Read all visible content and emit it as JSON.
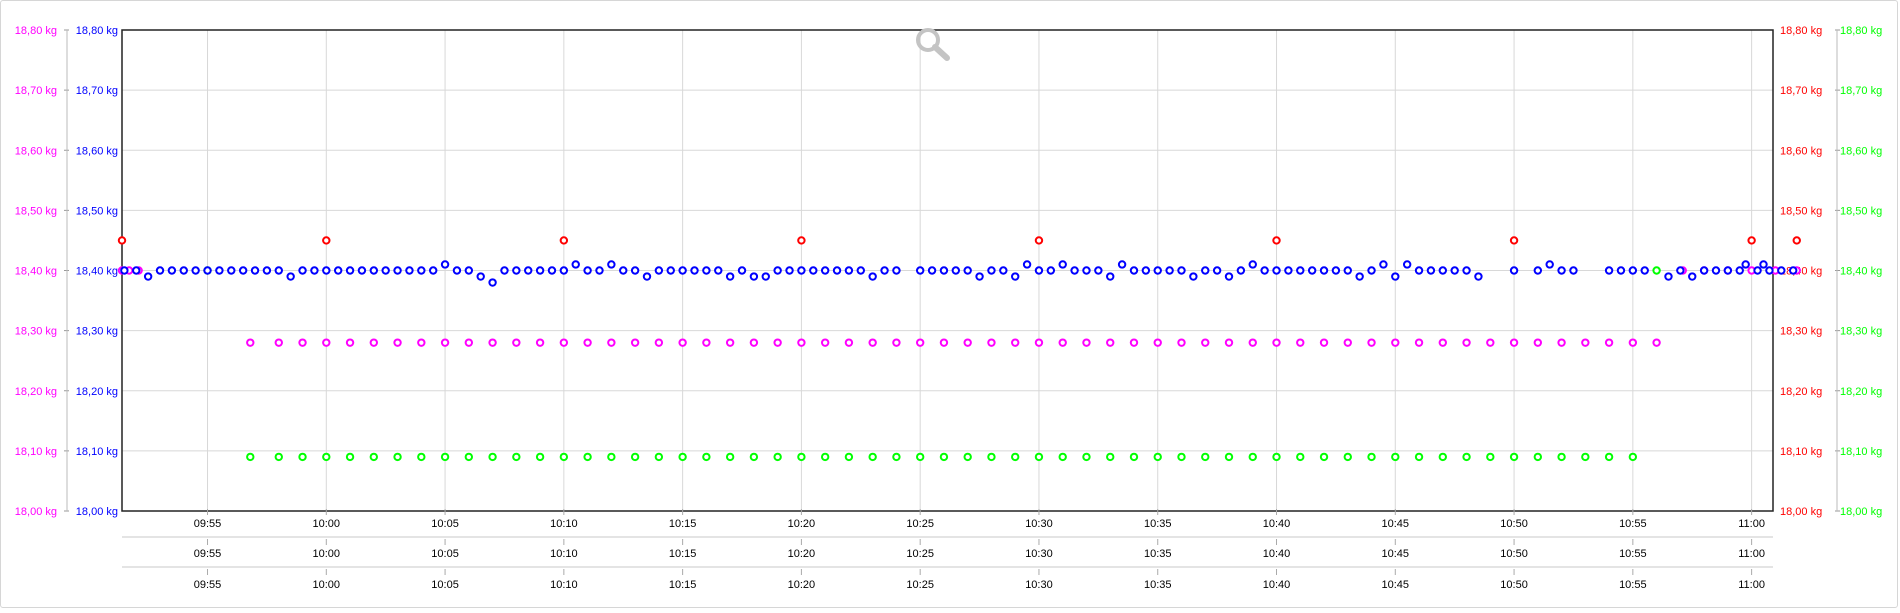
{
  "chart_data": {
    "type": "scatter",
    "y_unit": "kg",
    "ylim": [
      18.0,
      18.8
    ],
    "y_ticks": [
      "18,00 kg",
      "18,10 kg",
      "18,20 kg",
      "18,30 kg",
      "18,40 kg",
      "18,50 kg",
      "18,60 kg",
      "18,70 kg",
      "18,80 kg"
    ],
    "x_ticks": [
      "09:55",
      "10:00",
      "10:05",
      "10:10",
      "10:15",
      "10:20",
      "10:25",
      "10:30",
      "10:35",
      "10:40",
      "10:45",
      "10:50",
      "10:55",
      "11:00"
    ],
    "x_range": [
      "09:51:24",
      "11:00:54"
    ],
    "grid": true,
    "axes": [
      {
        "side": "left-outer",
        "color": "#ff00ff"
      },
      {
        "side": "left-inner",
        "color": "#0000ff"
      },
      {
        "side": "right-inner",
        "color": "#ff0000"
      },
      {
        "side": "right-outer",
        "color": "#00ff00"
      }
    ],
    "series": [
      {
        "color": "#ff0000",
        "points": [
          [
            "09:51:24",
            18.45
          ],
          [
            "10:00:00",
            18.45
          ],
          [
            "10:10:00",
            18.45
          ],
          [
            "10:20:00",
            18.45
          ],
          [
            "10:30:00",
            18.45
          ],
          [
            "10:40:00",
            18.45
          ],
          [
            "10:50:00",
            18.45
          ],
          [
            "11:00:00",
            18.45
          ],
          [
            "11:01:54",
            18.45
          ]
        ]
      },
      {
        "color": "#ff00ff",
        "points": [
          [
            "09:51:24",
            18.4
          ],
          [
            "09:51:42",
            18.4
          ],
          [
            "09:52:06",
            18.4
          ],
          [
            "09:56:48",
            18.28
          ],
          [
            "09:58:00",
            18.28
          ],
          [
            "09:59:00",
            18.28
          ],
          [
            "10:00:00",
            18.28
          ],
          [
            "10:01:00",
            18.28
          ],
          [
            "10:02:00",
            18.28
          ],
          [
            "10:03:00",
            18.28
          ],
          [
            "10:04:00",
            18.28
          ],
          [
            "10:05:00",
            18.28
          ],
          [
            "10:06:00",
            18.28
          ],
          [
            "10:07:00",
            18.28
          ],
          [
            "10:08:00",
            18.28
          ],
          [
            "10:09:00",
            18.28
          ],
          [
            "10:10:00",
            18.28
          ],
          [
            "10:11:00",
            18.28
          ],
          [
            "10:12:00",
            18.28
          ],
          [
            "10:13:00",
            18.28
          ],
          [
            "10:14:00",
            18.28
          ],
          [
            "10:15:00",
            18.28
          ],
          [
            "10:16:00",
            18.28
          ],
          [
            "10:17:00",
            18.28
          ],
          [
            "10:18:00",
            18.28
          ],
          [
            "10:19:00",
            18.28
          ],
          [
            "10:20:00",
            18.28
          ],
          [
            "10:21:00",
            18.28
          ],
          [
            "10:22:00",
            18.28
          ],
          [
            "10:23:00",
            18.28
          ],
          [
            "10:24:00",
            18.28
          ],
          [
            "10:25:00",
            18.28
          ],
          [
            "10:26:00",
            18.28
          ],
          [
            "10:27:00",
            18.28
          ],
          [
            "10:28:00",
            18.28
          ],
          [
            "10:29:00",
            18.28
          ],
          [
            "10:30:00",
            18.28
          ],
          [
            "10:31:00",
            18.28
          ],
          [
            "10:32:00",
            18.28
          ],
          [
            "10:33:00",
            18.28
          ],
          [
            "10:34:00",
            18.28
          ],
          [
            "10:35:00",
            18.28
          ],
          [
            "10:36:00",
            18.28
          ],
          [
            "10:37:00",
            18.28
          ],
          [
            "10:38:00",
            18.28
          ],
          [
            "10:39:00",
            18.28
          ],
          [
            "10:40:00",
            18.28
          ],
          [
            "10:41:00",
            18.28
          ],
          [
            "10:42:00",
            18.28
          ],
          [
            "10:43:00",
            18.28
          ],
          [
            "10:44:00",
            18.28
          ],
          [
            "10:45:00",
            18.28
          ],
          [
            "10:46:00",
            18.28
          ],
          [
            "10:47:00",
            18.28
          ],
          [
            "10:48:00",
            18.28
          ],
          [
            "10:49:00",
            18.28
          ],
          [
            "10:50:00",
            18.28
          ],
          [
            "10:51:00",
            18.28
          ],
          [
            "10:52:00",
            18.28
          ],
          [
            "10:53:00",
            18.28
          ],
          [
            "10:54:00",
            18.28
          ],
          [
            "10:55:00",
            18.28
          ],
          [
            "10:56:00",
            18.28
          ],
          [
            "10:57:06",
            18.4
          ],
          [
            "10:58:00",
            18.4
          ],
          [
            "10:59:00",
            18.4
          ],
          [
            "11:00:00",
            18.4
          ],
          [
            "11:01:00",
            18.4
          ],
          [
            "11:01:54",
            18.4
          ]
        ]
      },
      {
        "color": "#00ff00",
        "points": [
          [
            "09:55:00",
            18.4
          ],
          [
            "09:56:48",
            18.09
          ],
          [
            "09:58:00",
            18.09
          ],
          [
            "09:59:00",
            18.09
          ],
          [
            "10:00:00",
            18.09
          ],
          [
            "10:01:00",
            18.09
          ],
          [
            "10:02:00",
            18.09
          ],
          [
            "10:03:00",
            18.09
          ],
          [
            "10:04:00",
            18.09
          ],
          [
            "10:05:00",
            18.09
          ],
          [
            "10:06:00",
            18.09
          ],
          [
            "10:07:00",
            18.09
          ],
          [
            "10:08:00",
            18.09
          ],
          [
            "10:09:00",
            18.09
          ],
          [
            "10:10:00",
            18.09
          ],
          [
            "10:11:00",
            18.09
          ],
          [
            "10:12:00",
            18.09
          ],
          [
            "10:13:00",
            18.09
          ],
          [
            "10:14:00",
            18.09
          ],
          [
            "10:15:00",
            18.09
          ],
          [
            "10:16:00",
            18.09
          ],
          [
            "10:17:00",
            18.09
          ],
          [
            "10:18:00",
            18.09
          ],
          [
            "10:19:00",
            18.09
          ],
          [
            "10:20:00",
            18.09
          ],
          [
            "10:21:00",
            18.09
          ],
          [
            "10:22:00",
            18.09
          ],
          [
            "10:23:00",
            18.09
          ],
          [
            "10:24:00",
            18.09
          ],
          [
            "10:25:00",
            18.09
          ],
          [
            "10:26:00",
            18.09
          ],
          [
            "10:27:00",
            18.09
          ],
          [
            "10:28:00",
            18.09
          ],
          [
            "10:29:00",
            18.09
          ],
          [
            "10:30:00",
            18.09
          ],
          [
            "10:31:00",
            18.09
          ],
          [
            "10:32:00",
            18.09
          ],
          [
            "10:33:00",
            18.09
          ],
          [
            "10:34:00",
            18.09
          ],
          [
            "10:35:00",
            18.09
          ],
          [
            "10:36:00",
            18.09
          ],
          [
            "10:37:00",
            18.09
          ],
          [
            "10:38:00",
            18.09
          ],
          [
            "10:39:00",
            18.09
          ],
          [
            "10:40:00",
            18.09
          ],
          [
            "10:41:00",
            18.09
          ],
          [
            "10:42:00",
            18.09
          ],
          [
            "10:43:00",
            18.09
          ],
          [
            "10:44:00",
            18.09
          ],
          [
            "10:45:00",
            18.09
          ],
          [
            "10:46:00",
            18.09
          ],
          [
            "10:47:00",
            18.09
          ],
          [
            "10:48:00",
            18.09
          ],
          [
            "10:49:00",
            18.09
          ],
          [
            "10:50:00",
            18.09
          ],
          [
            "10:51:00",
            18.09
          ],
          [
            "10:52:00",
            18.09
          ],
          [
            "10:53:00",
            18.09
          ],
          [
            "10:54:00",
            18.09
          ],
          [
            "10:55:00",
            18.09
          ],
          [
            "10:56:00",
            18.4
          ]
        ]
      },
      {
        "color": "#0000ff",
        "points": [
          [
            "09:51:30",
            18.4
          ],
          [
            "09:52:00",
            18.4
          ],
          [
            "09:52:30",
            18.39
          ],
          [
            "09:53:00",
            18.4
          ],
          [
            "09:53:30",
            18.4
          ],
          [
            "09:54:00",
            18.4
          ],
          [
            "09:54:30",
            18.4
          ],
          [
            "09:55:00",
            18.4
          ],
          [
            "09:55:30",
            18.4
          ],
          [
            "09:56:00",
            18.4
          ],
          [
            "09:56:30",
            18.4
          ],
          [
            "09:57:00",
            18.4
          ],
          [
            "09:57:30",
            18.4
          ],
          [
            "09:58:00",
            18.4
          ],
          [
            "09:58:30",
            18.39
          ],
          [
            "09:59:00",
            18.4
          ],
          [
            "09:59:30",
            18.4
          ],
          [
            "10:00:00",
            18.4
          ],
          [
            "10:00:30",
            18.4
          ],
          [
            "10:01:00",
            18.4
          ],
          [
            "10:01:30",
            18.4
          ],
          [
            "10:02:00",
            18.4
          ],
          [
            "10:02:30",
            18.4
          ],
          [
            "10:03:00",
            18.4
          ],
          [
            "10:03:30",
            18.4
          ],
          [
            "10:04:00",
            18.4
          ],
          [
            "10:04:30",
            18.4
          ],
          [
            "10:05:00",
            18.41
          ],
          [
            "10:05:30",
            18.4
          ],
          [
            "10:06:00",
            18.4
          ],
          [
            "10:06:30",
            18.39
          ],
          [
            "10:07:00",
            18.38
          ],
          [
            "10:07:30",
            18.4
          ],
          [
            "10:08:00",
            18.4
          ],
          [
            "10:08:30",
            18.4
          ],
          [
            "10:09:00",
            18.4
          ],
          [
            "10:09:30",
            18.4
          ],
          [
            "10:10:00",
            18.4
          ],
          [
            "10:10:30",
            18.41
          ],
          [
            "10:11:00",
            18.4
          ],
          [
            "10:11:30",
            18.4
          ],
          [
            "10:12:00",
            18.41
          ],
          [
            "10:12:30",
            18.4
          ],
          [
            "10:13:00",
            18.4
          ],
          [
            "10:13:30",
            18.39
          ],
          [
            "10:14:00",
            18.4
          ],
          [
            "10:14:30",
            18.4
          ],
          [
            "10:15:00",
            18.4
          ],
          [
            "10:15:30",
            18.4
          ],
          [
            "10:16:00",
            18.4
          ],
          [
            "10:16:30",
            18.4
          ],
          [
            "10:17:00",
            18.39
          ],
          [
            "10:17:30",
            18.4
          ],
          [
            "10:18:00",
            18.39
          ],
          [
            "10:18:30",
            18.39
          ],
          [
            "10:19:00",
            18.4
          ],
          [
            "10:19:30",
            18.4
          ],
          [
            "10:20:00",
            18.4
          ],
          [
            "10:20:30",
            18.4
          ],
          [
            "10:21:00",
            18.4
          ],
          [
            "10:21:30",
            18.4
          ],
          [
            "10:22:00",
            18.4
          ],
          [
            "10:22:30",
            18.4
          ],
          [
            "10:23:00",
            18.39
          ],
          [
            "10:23:30",
            18.4
          ],
          [
            "10:24:00",
            18.4
          ],
          [
            "10:25:00",
            18.4
          ],
          [
            "10:25:30",
            18.4
          ],
          [
            "10:26:00",
            18.4
          ],
          [
            "10:26:30",
            18.4
          ],
          [
            "10:27:00",
            18.4
          ],
          [
            "10:27:30",
            18.39
          ],
          [
            "10:28:00",
            18.4
          ],
          [
            "10:28:30",
            18.4
          ],
          [
            "10:29:00",
            18.39
          ],
          [
            "10:29:30",
            18.41
          ],
          [
            "10:30:00",
            18.4
          ],
          [
            "10:30:30",
            18.4
          ],
          [
            "10:31:00",
            18.41
          ],
          [
            "10:31:30",
            18.4
          ],
          [
            "10:32:00",
            18.4
          ],
          [
            "10:32:30",
            18.4
          ],
          [
            "10:33:00",
            18.39
          ],
          [
            "10:33:30",
            18.41
          ],
          [
            "10:34:00",
            18.4
          ],
          [
            "10:34:30",
            18.4
          ],
          [
            "10:35:00",
            18.4
          ],
          [
            "10:35:30",
            18.4
          ],
          [
            "10:36:00",
            18.4
          ],
          [
            "10:36:30",
            18.39
          ],
          [
            "10:37:00",
            18.4
          ],
          [
            "10:37:30",
            18.4
          ],
          [
            "10:38:00",
            18.39
          ],
          [
            "10:38:30",
            18.4
          ],
          [
            "10:39:00",
            18.41
          ],
          [
            "10:39:30",
            18.4
          ],
          [
            "10:40:00",
            18.4
          ],
          [
            "10:40:30",
            18.4
          ],
          [
            "10:41:00",
            18.4
          ],
          [
            "10:41:30",
            18.4
          ],
          [
            "10:42:00",
            18.4
          ],
          [
            "10:42:30",
            18.4
          ],
          [
            "10:43:00",
            18.4
          ],
          [
            "10:43:30",
            18.39
          ],
          [
            "10:44:00",
            18.4
          ],
          [
            "10:44:30",
            18.41
          ],
          [
            "10:45:00",
            18.39
          ],
          [
            "10:45:30",
            18.41
          ],
          [
            "10:46:00",
            18.4
          ],
          [
            "10:46:30",
            18.4
          ],
          [
            "10:47:00",
            18.4
          ],
          [
            "10:47:30",
            18.4
          ],
          [
            "10:48:00",
            18.4
          ],
          [
            "10:48:30",
            18.39
          ],
          [
            "10:50:00",
            18.4
          ],
          [
            "10:51:00",
            18.4
          ],
          [
            "10:51:30",
            18.41
          ],
          [
            "10:52:00",
            18.4
          ],
          [
            "10:52:30",
            18.4
          ],
          [
            "10:54:00",
            18.4
          ],
          [
            "10:54:30",
            18.4
          ],
          [
            "10:55:00",
            18.4
          ],
          [
            "10:55:30",
            18.4
          ],
          [
            "10:56:30",
            18.39
          ],
          [
            "10:57:00",
            18.4
          ],
          [
            "10:57:30",
            18.39
          ],
          [
            "10:58:00",
            18.4
          ],
          [
            "10:58:30",
            18.4
          ],
          [
            "10:59:00",
            18.4
          ],
          [
            "10:59:30",
            18.4
          ],
          [
            "10:59:45",
            18.41
          ],
          [
            "11:00:15",
            18.4
          ],
          [
            "11:00:30",
            18.41
          ],
          [
            "11:00:45",
            18.4
          ],
          [
            "11:01:15",
            18.4
          ],
          [
            "11:01:45",
            18.4
          ]
        ]
      }
    ]
  }
}
